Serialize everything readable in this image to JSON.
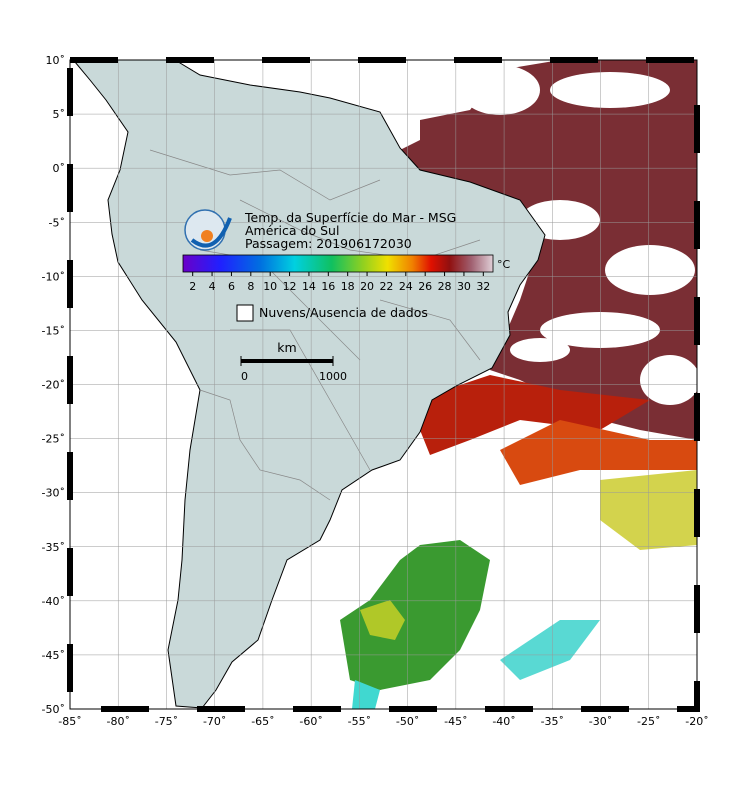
{
  "title": {
    "line1": "Temp. da Superfície do Mar - MSG",
    "line2": "América do Sul",
    "line3": "Passagem: 201906172030"
  },
  "colorbar": {
    "unit": "°C",
    "lim": [
      1,
      33
    ],
    "ticks": [
      2,
      4,
      6,
      8,
      10,
      12,
      14,
      16,
      18,
      20,
      22,
      24,
      26,
      28,
      30,
      32
    ]
  },
  "legend": {
    "label": "Nuvens/Ausencia de dados"
  },
  "scale": {
    "unit": "km",
    "ticks": [
      0,
      1000
    ]
  },
  "map": {
    "lonlim": [
      -85,
      -20
    ],
    "latlim": [
      -50,
      10
    ],
    "lonticks": [
      {
        "value": -85,
        "label": "-85˚"
      },
      {
        "value": -80,
        "label": "-80˚"
      },
      {
        "value": -75,
        "label": "-75˚"
      },
      {
        "value": -70,
        "label": "-70˚"
      },
      {
        "value": -65,
        "label": "-65˚"
      },
      {
        "value": -60,
        "label": "-60˚"
      },
      {
        "value": -55,
        "label": "-55˚"
      },
      {
        "value": -50,
        "label": "-50˚"
      },
      {
        "value": -45,
        "label": "-45˚"
      },
      {
        "value": -40,
        "label": "-40˚"
      },
      {
        "value": -35,
        "label": "-35˚"
      },
      {
        "value": -30,
        "label": "-30˚"
      },
      {
        "value": -25,
        "label": "-25˚"
      },
      {
        "value": -20,
        "label": "-20˚"
      }
    ],
    "latticks": [
      {
        "value": 10,
        "label": "10˚"
      },
      {
        "value": 5,
        "label": "5˚"
      },
      {
        "value": 0,
        "label": "0˚"
      },
      {
        "value": -5,
        "label": "-5˚"
      },
      {
        "value": -10,
        "label": "-10˚"
      },
      {
        "value": -15,
        "label": "-15˚"
      },
      {
        "value": -20,
        "label": "-20˚"
      },
      {
        "value": -25,
        "label": "-25˚"
      },
      {
        "value": -30,
        "label": "-30˚"
      },
      {
        "value": -35,
        "label": "-35˚"
      },
      {
        "value": -40,
        "label": "-40˚"
      },
      {
        "value": -45,
        "label": "-45˚"
      },
      {
        "value": -50,
        "label": "-50˚"
      }
    ]
  }
}
